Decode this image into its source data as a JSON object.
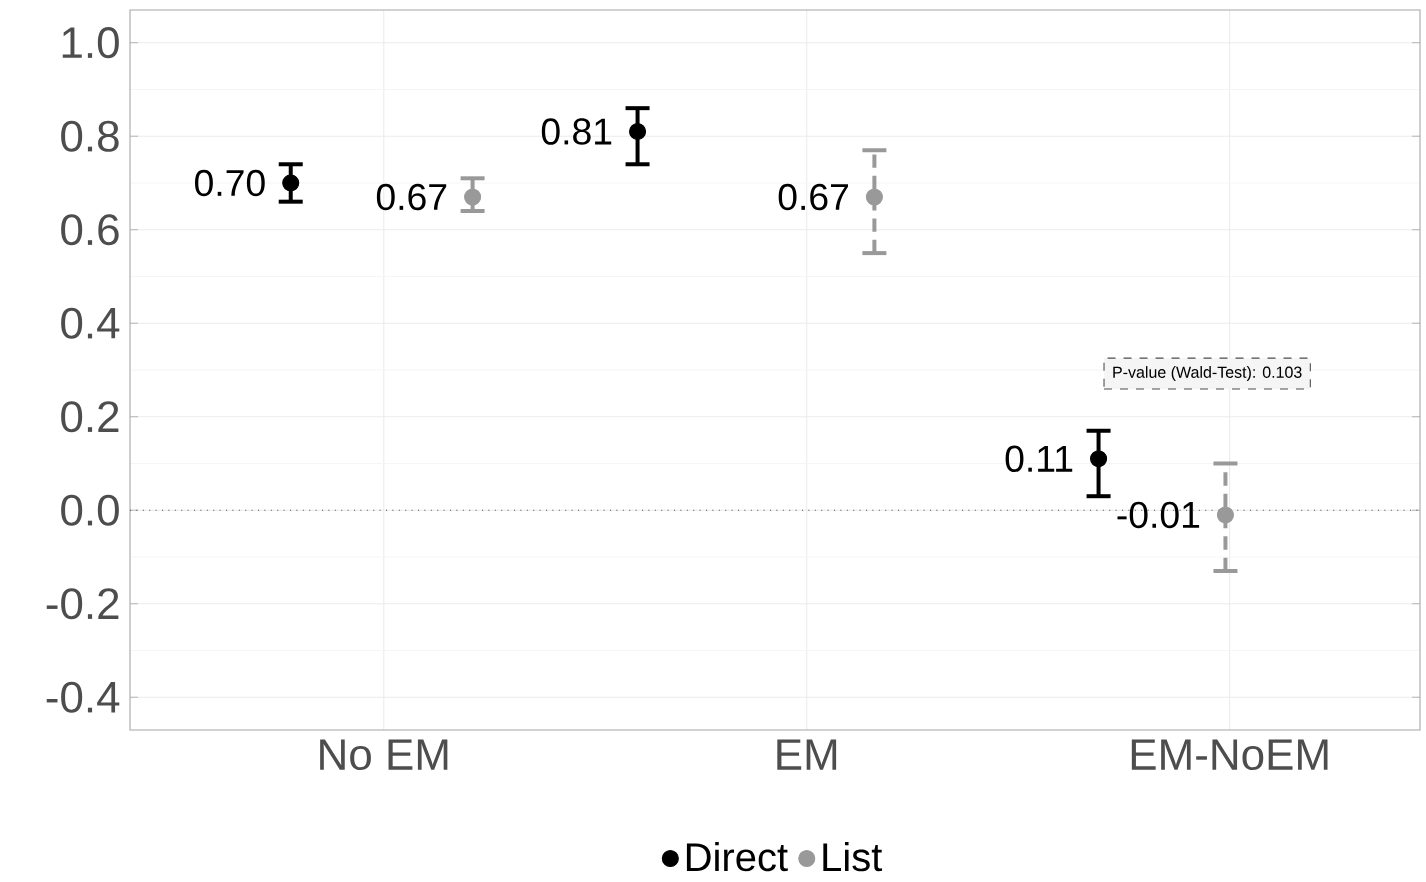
{
  "chart_data": {
    "type": "scatter",
    "categories": [
      "No EM",
      "EM",
      "EM-NoEM"
    ],
    "series": [
      {
        "name": "Direct",
        "color": "#000000",
        "values": [
          0.7,
          0.81,
          0.11
        ],
        "errors": [
          [
            0.66,
            0.74
          ],
          [
            0.74,
            0.86
          ],
          [
            0.03,
            0.17
          ]
        ],
        "value_labels": [
          "0.70",
          "0.81",
          "0.11"
        ],
        "line_style": "solid"
      },
      {
        "name": "List",
        "color": "#999999",
        "values": [
          0.67,
          0.67,
          -0.01
        ],
        "errors": [
          [
            0.64,
            0.71
          ],
          [
            0.55,
            0.77
          ],
          [
            -0.13,
            0.1
          ]
        ],
        "value_labels": [
          "0.67",
          "0.67",
          "-0.01"
        ],
        "line_style": "dashed"
      }
    ],
    "ylim": [
      -0.47,
      1.07
    ],
    "yticks": [
      {
        "value": -0.4,
        "label": "-0.4"
      },
      {
        "value": -0.2,
        "label": "-0.2"
      },
      {
        "value": 0.0,
        "label": "0.0"
      },
      {
        "value": 0.2,
        "label": "0.2"
      },
      {
        "value": 0.4,
        "label": "0.4"
      },
      {
        "value": 0.6,
        "label": "0.6"
      },
      {
        "value": 0.8,
        "label": "0.8"
      },
      {
        "value": 1.0,
        "label": "1.0"
      }
    ],
    "grid": true,
    "legend": "bottom",
    "marker": "circle",
    "ref_lines": [
      {
        "axis": "y",
        "value": 0,
        "line_style": "dotted"
      }
    ],
    "annotations": [
      "P-value (Wald-Test): 0.103"
    ]
  }
}
